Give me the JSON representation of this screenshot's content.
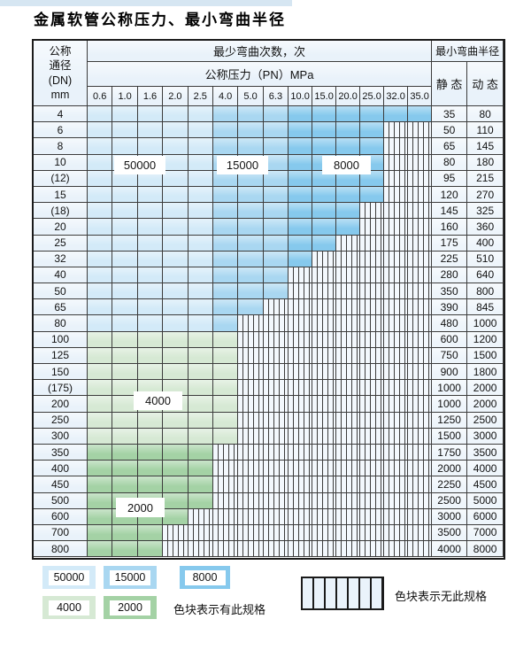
{
  "page": {
    "title": "金属软管公称压力、最小弯曲半径"
  },
  "table": {
    "header": {
      "dn_lines": [
        "公称",
        "通径",
        "(DN)",
        "mm"
      ],
      "bend_cycles": "最少弯曲次数，次",
      "pressure": "公称压力（PN）MPa",
      "min_radius": "最小弯曲半径",
      "static": "静 态",
      "dynamic": "动 态",
      "pressures": [
        "0.6",
        "1.0",
        "1.6",
        "2.0",
        "2.5",
        "4.0",
        "5.0",
        "6.3",
        "10.0",
        "15.0",
        "20.0",
        "25.0",
        "32.0",
        "35.0"
      ]
    },
    "rows": [
      {
        "dn": "4",
        "group": "blue",
        "last": 13,
        "static": "35",
        "dynamic": "80"
      },
      {
        "dn": "6",
        "group": "blue",
        "last": 11,
        "static": "50",
        "dynamic": "110"
      },
      {
        "dn": "8",
        "group": "blue",
        "last": 11,
        "static": "65",
        "dynamic": "145"
      },
      {
        "dn": "10",
        "group": "blue",
        "last": 11,
        "static": "80",
        "dynamic": "180"
      },
      {
        "dn": "(12)",
        "group": "blue",
        "last": 11,
        "static": "95",
        "dynamic": "215"
      },
      {
        "dn": "15",
        "group": "blue",
        "last": 11,
        "static": "120",
        "dynamic": "270"
      },
      {
        "dn": "(18)",
        "group": "blue",
        "last": 10,
        "static": "145",
        "dynamic": "325"
      },
      {
        "dn": "20",
        "group": "blue",
        "last": 10,
        "static": "160",
        "dynamic": "360"
      },
      {
        "dn": "25",
        "group": "blue",
        "last": 9,
        "static": "175",
        "dynamic": "400"
      },
      {
        "dn": "32",
        "group": "blue",
        "last": 8,
        "static": "225",
        "dynamic": "510"
      },
      {
        "dn": "40",
        "group": "blue",
        "last": 7,
        "static": "280",
        "dynamic": "640"
      },
      {
        "dn": "50",
        "group": "blue",
        "last": 7,
        "static": "350",
        "dynamic": "800"
      },
      {
        "dn": "65",
        "group": "blue",
        "last": 6,
        "static": "390",
        "dynamic": "845"
      },
      {
        "dn": "80",
        "group": "blue",
        "last": 5,
        "static": "480",
        "dynamic": "1000"
      },
      {
        "dn": "100",
        "group": "green_4000",
        "last": 5,
        "static": "600",
        "dynamic": "1200"
      },
      {
        "dn": "125",
        "group": "green_4000",
        "last": 5,
        "static": "750",
        "dynamic": "1500"
      },
      {
        "dn": "150",
        "group": "green_4000",
        "last": 5,
        "static": "900",
        "dynamic": "1800"
      },
      {
        "dn": "(175)",
        "group": "green_4000",
        "last": 5,
        "static": "1000",
        "dynamic": "2000"
      },
      {
        "dn": "200",
        "group": "green_4000",
        "last": 5,
        "static": "1000",
        "dynamic": "2000"
      },
      {
        "dn": "250",
        "group": "green_4000",
        "last": 5,
        "static": "1250",
        "dynamic": "2500"
      },
      {
        "dn": "300",
        "group": "green_4000",
        "last": 5,
        "static": "1500",
        "dynamic": "3000"
      },
      {
        "dn": "350",
        "group": "green_2000",
        "last": 4,
        "static": "1750",
        "dynamic": "3500"
      },
      {
        "dn": "400",
        "group": "green_2000",
        "last": 4,
        "static": "2000",
        "dynamic": "4000"
      },
      {
        "dn": "450",
        "group": "green_2000",
        "last": 4,
        "static": "2250",
        "dynamic": "4500"
      },
      {
        "dn": "500",
        "group": "green_2000",
        "last": 4,
        "static": "2500",
        "dynamic": "5000"
      },
      {
        "dn": "600",
        "group": "green_2000",
        "last": 3,
        "static": "3000",
        "dynamic": "6000"
      },
      {
        "dn": "700",
        "group": "green_2000",
        "last": 2,
        "static": "3500",
        "dynamic": "7000"
      },
      {
        "dn": "800",
        "group": "green_2000",
        "last": 2,
        "static": "4000",
        "dynamic": "8000"
      }
    ]
  },
  "legend": {
    "items": [
      {
        "value": "50000",
        "color_key": "blue_50000"
      },
      {
        "value": "15000",
        "color_key": "blue_15000"
      },
      {
        "value": "8000",
        "color_key": "blue_8000"
      },
      {
        "value": "4000",
        "color_key": "green_4000"
      },
      {
        "value": "2000",
        "color_key": "green_2000"
      }
    ],
    "has_spec_text": "色块表示有此规格",
    "no_spec_text": "色块表示无此规格"
  },
  "colors": {
    "blue_50000": "#d3eaf8",
    "blue_15000": "#a9d7f1",
    "blue_8000": "#86c9ed",
    "green_4000": "#d6e9d4",
    "green_2000": "#a4d2a5"
  }
}
